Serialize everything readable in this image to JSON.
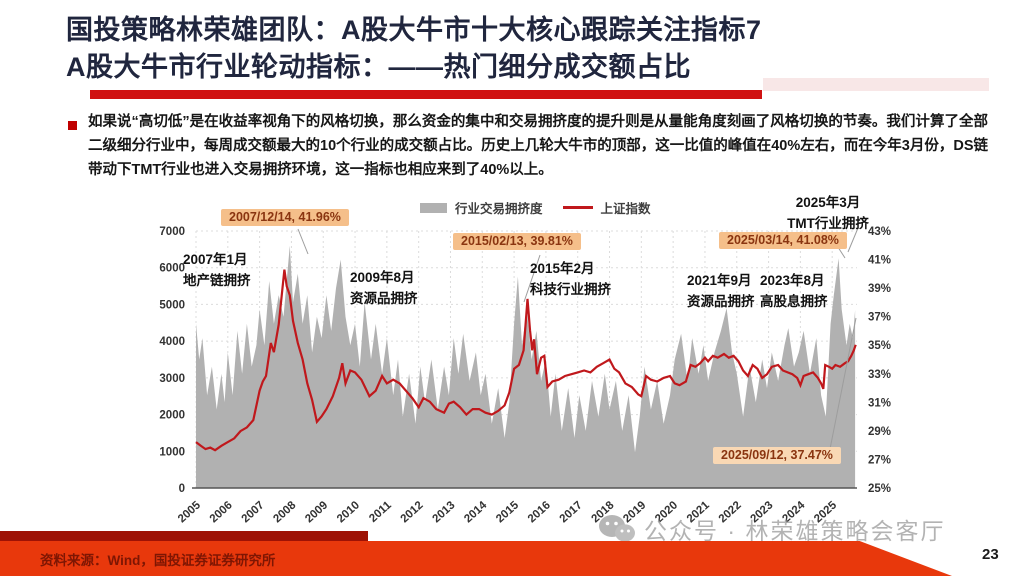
{
  "slide": {
    "title": {
      "line1": "国投策略林荣雄团队：A股大牛市十大核心跟踪关注指标7",
      "line2": "A股大牛市行业轮动指标：——热门细分成交额占比"
    },
    "bullet_text": "如果说“高切低”是在收益率视角下的风格切换，那么资金的集中和交易拥挤度的提升则是从量能角度刻画了风格切换的节奏。我们计算了全部二级细分行业中，每周成交额最大的10个行业的成交额占比。历史上几轮大牛市的顶部，这一比值的峰值在40%左右，而在今年3月份，DS链带动下TMT行业也进入交易拥挤环境，这一指标也相应来到了40%以上。",
    "watermark": {
      "text": "公众号 · 林荣雄策略会客厅",
      "icon": "wechat-icon"
    },
    "footer": {
      "source": "资料来源：Wind，国投证券证券研究所",
      "page_number": "23"
    }
  },
  "colors": {
    "title_navy": "#20263e",
    "underline_red": "#d01212",
    "bullet_red": "#c00000",
    "area_gray": "#b1b1b1",
    "line_red": "#c0181c",
    "callout_bg": "#f5bf8a",
    "callout_bg_light": "#f9d8b4",
    "callout_text": "#8a3510",
    "footer_bg": "#e8380c",
    "footer_dark": "#9e1205"
  },
  "chart_data": {
    "type": "area+line",
    "title": "",
    "legend_position": "top-center",
    "grid": true,
    "x_ticks": [
      "2005",
      "2006",
      "2007",
      "2008",
      "2009",
      "2010",
      "2011",
      "2012",
      "2013",
      "2014",
      "2015",
      "2016",
      "2017",
      "2018",
      "2019",
      "2020",
      "2021",
      "2022",
      "2023",
      "2024",
      "2025"
    ],
    "left_axis": {
      "label": "上证指数",
      "min": 0,
      "max": 7000,
      "ticks": [
        "7000",
        "6000",
        "5000",
        "4000",
        "3000",
        "2000",
        "1000",
        "0"
      ]
    },
    "right_axis": {
      "label": "行业交易拥挤度",
      "min": 25,
      "max": 43,
      "ticks": [
        "43%",
        "41%",
        "39%",
        "37%",
        "35%",
        "33%",
        "31%",
        "29%",
        "27%",
        "25%"
      ]
    },
    "series": [
      {
        "name": "行业交易拥挤度",
        "type": "area",
        "axis": "right",
        "color": "#b1b1b1",
        "x": [
          2005.0,
          2005.1,
          2005.2,
          2005.35,
          2005.5,
          2005.65,
          2005.8,
          2005.9,
          2006.0,
          2006.15,
          2006.3,
          2006.45,
          2006.6,
          2006.75,
          2006.9,
          2007.0,
          2007.15,
          2007.3,
          2007.45,
          2007.6,
          2007.75,
          2007.95,
          2008.05,
          2008.2,
          2008.35,
          2008.5,
          2008.65,
          2008.8,
          2008.95,
          2009.1,
          2009.25,
          2009.4,
          2009.55,
          2009.7,
          2009.85,
          2010.0,
          2010.15,
          2010.3,
          2010.5,
          2010.65,
          2010.85,
          2011.0,
          2011.2,
          2011.35,
          2011.5,
          2011.7,
          2011.9,
          2012.05,
          2012.2,
          2012.4,
          2012.6,
          2012.8,
          2012.95,
          2013.1,
          2013.25,
          2013.4,
          2013.6,
          2013.8,
          2013.95,
          2014.1,
          2014.3,
          2014.5,
          2014.7,
          2014.85,
          2015.0,
          2015.12,
          2015.25,
          2015.4,
          2015.55,
          2015.7,
          2015.85,
          2016.0,
          2016.15,
          2016.3,
          2016.5,
          2016.7,
          2016.9,
          2017.05,
          2017.25,
          2017.45,
          2017.65,
          2017.85,
          2018.0,
          2018.2,
          2018.4,
          2018.6,
          2018.8,
          2018.95,
          2019.1,
          2019.3,
          2019.5,
          2019.7,
          2019.9,
          2020.05,
          2020.25,
          2020.45,
          2020.6,
          2020.8,
          2020.95,
          2021.1,
          2021.3,
          2021.5,
          2021.68,
          2021.85,
          2022.0,
          2022.2,
          2022.4,
          2022.6,
          2022.8,
          2022.95,
          2023.1,
          2023.3,
          2023.5,
          2023.62,
          2023.8,
          2023.95,
          2024.1,
          2024.3,
          2024.5,
          2024.65,
          2024.8,
          2024.95,
          2025.05,
          2025.2,
          2025.3,
          2025.45,
          2025.55,
          2025.65,
          2025.72
        ],
        "values": [
          36.5,
          34.0,
          35.5,
          31.5,
          33.5,
          30.5,
          33.0,
          31.0,
          34.5,
          31.5,
          36.0,
          33.0,
          36.5,
          33.5,
          35.0,
          37.5,
          35.0,
          39.5,
          36.5,
          38.5,
          37.0,
          41.96,
          38.0,
          40.0,
          36.5,
          38.5,
          34.5,
          37.0,
          35.5,
          38.5,
          36.0,
          39.0,
          41.0,
          37.0,
          35.0,
          36.5,
          33.5,
          38.0,
          34.0,
          36.5,
          33.0,
          35.5,
          31.5,
          34.0,
          30.0,
          33.0,
          29.5,
          33.5,
          31.0,
          34.0,
          30.5,
          33.5,
          31.5,
          35.5,
          33.0,
          35.8,
          32.5,
          34.5,
          31.5,
          33.0,
          29.5,
          32.0,
          28.5,
          31.0,
          36.5,
          39.81,
          35.0,
          37.5,
          34.0,
          36.0,
          32.5,
          34.0,
          30.0,
          33.0,
          29.0,
          32.0,
          28.5,
          31.5,
          29.0,
          32.5,
          30.0,
          33.0,
          30.5,
          32.5,
          29.0,
          31.5,
          27.5,
          30.0,
          33.5,
          30.5,
          32.5,
          29.5,
          31.5,
          34.0,
          35.8,
          32.5,
          35.5,
          33.0,
          35.0,
          32.5,
          34.5,
          36.0,
          37.6,
          34.5,
          33.0,
          30.0,
          33.5,
          31.0,
          34.0,
          32.0,
          34.5,
          32.5,
          35.0,
          36.2,
          33.5,
          34.5,
          36.0,
          33.0,
          35.5,
          31.5,
          30.0,
          36.5,
          38.5,
          41.08,
          37.5,
          35.0,
          36.5,
          35.5,
          37.47
        ]
      },
      {
        "name": "上证指数",
        "type": "line",
        "axis": "left",
        "color": "#c0181c",
        "x": [
          2005.0,
          2005.15,
          2005.3,
          2005.45,
          2005.6,
          2005.8,
          2006.0,
          2006.2,
          2006.4,
          2006.6,
          2006.8,
          2007.0,
          2007.1,
          2007.2,
          2007.35,
          2007.45,
          2007.6,
          2007.78,
          2007.85,
          2007.95,
          2008.05,
          2008.2,
          2008.35,
          2008.5,
          2008.65,
          2008.8,
          2008.95,
          2009.1,
          2009.3,
          2009.5,
          2009.6,
          2009.7,
          2009.85,
          2010.0,
          2010.2,
          2010.45,
          2010.65,
          2010.85,
          2011.0,
          2011.2,
          2011.4,
          2011.6,
          2011.8,
          2012.0,
          2012.15,
          2012.35,
          2012.55,
          2012.8,
          2012.95,
          2013.1,
          2013.3,
          2013.5,
          2013.7,
          2013.9,
          2014.1,
          2014.3,
          2014.5,
          2014.7,
          2014.85,
          2015.0,
          2015.15,
          2015.3,
          2015.42,
          2015.5,
          2015.57,
          2015.63,
          2015.72,
          2015.85,
          2015.95,
          2016.05,
          2016.2,
          2016.4,
          2016.6,
          2016.8,
          2017.0,
          2017.2,
          2017.4,
          2017.6,
          2017.8,
          2018.0,
          2018.15,
          2018.3,
          2018.5,
          2018.7,
          2018.9,
          2019.0,
          2019.15,
          2019.3,
          2019.5,
          2019.7,
          2019.9,
          2020.05,
          2020.2,
          2020.4,
          2020.55,
          2020.7,
          2020.85,
          2021.0,
          2021.1,
          2021.25,
          2021.4,
          2021.6,
          2021.75,
          2021.9,
          2022.05,
          2022.2,
          2022.35,
          2022.5,
          2022.65,
          2022.8,
          2022.95,
          2023.1,
          2023.3,
          2023.45,
          2023.6,
          2023.75,
          2023.9,
          2024.0,
          2024.1,
          2024.25,
          2024.4,
          2024.55,
          2024.65,
          2024.72,
          2024.78,
          2024.9,
          2025.0,
          2025.1,
          2025.25,
          2025.4,
          2025.5,
          2025.6,
          2025.68,
          2025.74
        ],
        "values": [
          1250,
          1150,
          1060,
          1100,
          1030,
          1150,
          1250,
          1350,
          1550,
          1650,
          1850,
          2650,
          2900,
          3050,
          3950,
          3700,
          4450,
          5950,
          5500,
          5250,
          4550,
          3950,
          3500,
          2850,
          2400,
          1800,
          1950,
          2150,
          2500,
          3000,
          3400,
          2850,
          3200,
          3150,
          2950,
          2500,
          2650,
          3050,
          2850,
          2950,
          2850,
          2650,
          2450,
          2200,
          2450,
          2350,
          2150,
          2050,
          2300,
          2350,
          2200,
          2000,
          2150,
          2150,
          2050,
          2000,
          2100,
          2250,
          2600,
          3250,
          3350,
          3750,
          5150,
          4300,
          3750,
          4050,
          3100,
          3550,
          3600,
          2750,
          2900,
          2950,
          3050,
          3100,
          3150,
          3200,
          3150,
          3300,
          3400,
          3500,
          3250,
          3150,
          2850,
          2750,
          2550,
          2500,
          3050,
          2950,
          2900,
          3000,
          3050,
          2850,
          2800,
          2900,
          3350,
          3300,
          3400,
          3550,
          3450,
          3600,
          3550,
          3650,
          3550,
          3600,
          3450,
          3200,
          3050,
          3350,
          3250,
          3000,
          3100,
          3300,
          3350,
          3200,
          3150,
          3100,
          3000,
          2800,
          3050,
          3100,
          3150,
          3000,
          2850,
          2700,
          3350,
          3300,
          3250,
          3350,
          3300,
          3400,
          3450,
          3600,
          3750,
          3900
        ]
      }
    ],
    "annotations": {
      "callouts": [
        {
          "text": "2007/12/14, 41.96%"
        },
        {
          "text": "2015/02/13, 39.81%"
        },
        {
          "text": "2025/03/14, 41.08%"
        },
        {
          "text": "2025/09/12, 37.47%"
        }
      ],
      "event_labels": [
        {
          "line1": "2007年1月",
          "line2": "地产链拥挤"
        },
        {
          "line1": "2009年8月",
          "line2": "资源品拥挤"
        },
        {
          "line1": "2015年2月",
          "line2": "科技行业拥挤"
        },
        {
          "line1": "2021年9月",
          "line2": "资源品拥挤"
        },
        {
          "line1": "2023年8月",
          "line2": "高股息拥挤"
        },
        {
          "line1": "2025年3月",
          "line2": "TMT行业拥挤"
        }
      ]
    }
  }
}
